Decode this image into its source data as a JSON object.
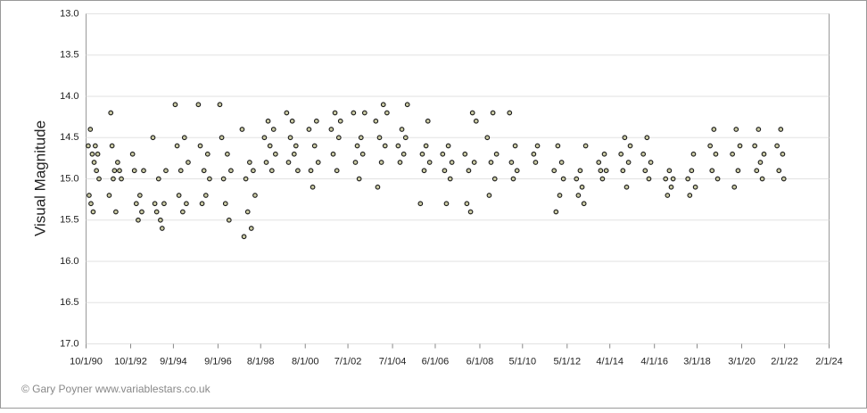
{
  "chart_data": {
    "type": "scatter",
    "y_label": "Visual Magnitude",
    "footer": "© Gary Poyner www.variablestars.co.uk",
    "x": [
      "11/5/90",
      "11/20/90",
      "12/10/90",
      "12/20/90",
      "1/10/91",
      "1/25/91",
      "2/10/91",
      "3/1/91",
      "3/20/91",
      "4/10/91",
      "5/1/91",
      "10/15/91",
      "11/10/91",
      "12/1/91",
      "12/20/91",
      "1/10/92",
      "2/1/92",
      "3/1/92",
      "4/1/92",
      "5/1/92",
      "11/1/92",
      "12/1/92",
      "1/1/93",
      "2/1/93",
      "3/1/93",
      "4/1/93",
      "5/1/93",
      "10/1/93",
      "11/1/93",
      "12/1/93",
      "1/1/94",
      "2/1/94",
      "3/1/94",
      "4/1/94",
      "5/1/94",
      "10/1/94",
      "11/1/94",
      "12/1/94",
      "1/1/95",
      "2/1/95",
      "3/1/95",
      "4/1/95",
      "5/1/95",
      "10/15/95",
      "11/15/95",
      "12/15/95",
      "1/15/96",
      "2/15/96",
      "3/15/96",
      "4/15/96",
      "10/1/96",
      "11/1/96",
      "12/1/96",
      "1/1/97",
      "2/1/97",
      "3/1/97",
      "4/1/97",
      "10/1/97",
      "11/1/97",
      "12/1/97",
      "1/1/98",
      "2/1/98",
      "3/1/98",
      "4/1/98",
      "5/1/98",
      "10/1/98",
      "11/1/98",
      "12/1/98",
      "1/1/99",
      "2/1/99",
      "3/1/99",
      "4/1/99",
      "10/1/99",
      "11/1/99",
      "12/1/99",
      "1/1/00",
      "2/1/00",
      "3/1/00",
      "4/1/00",
      "10/1/00",
      "11/1/00",
      "12/1/00",
      "1/1/01",
      "2/1/01",
      "3/1/01",
      "10/1/01",
      "11/1/01",
      "12/1/01",
      "1/1/02",
      "2/1/02",
      "3/1/02",
      "10/1/02",
      "11/1/02",
      "12/1/02",
      "1/1/03",
      "2/1/03",
      "3/1/03",
      "4/1/03",
      "10/1/03",
      "11/1/03",
      "12/1/03",
      "1/1/04",
      "2/1/04",
      "3/1/04",
      "4/1/04",
      "10/1/04",
      "11/1/04",
      "12/1/04",
      "1/1/05",
      "2/1/05",
      "3/1/05",
      "10/1/05",
      "11/1/05",
      "12/1/05",
      "1/1/06",
      "2/1/06",
      "3/1/06",
      "10/1/06",
      "11/1/06",
      "12/1/06",
      "1/1/07",
      "2/1/07",
      "3/1/07",
      "10/1/07",
      "11/1/07",
      "12/1/07",
      "1/1/08",
      "2/1/08",
      "3/1/08",
      "4/1/08",
      "10/1/08",
      "11/1/08",
      "12/1/08",
      "1/1/09",
      "2/1/09",
      "3/1/09",
      "10/1/09",
      "11/1/09",
      "12/1/09",
      "1/1/10",
      "2/1/10",
      "11/1/10",
      "12/1/10",
      "1/1/11",
      "10/1/11",
      "11/1/11",
      "12/1/11",
      "1/1/12",
      "2/1/12",
      "3/1/12",
      "10/1/12",
      "11/1/12",
      "12/1/12",
      "1/1/13",
      "2/1/13",
      "3/1/13",
      "10/1/13",
      "11/1/13",
      "12/1/13",
      "1/1/14",
      "2/1/14",
      "10/1/14",
      "11/1/14",
      "12/1/14",
      "1/1/15",
      "2/1/15",
      "3/1/15",
      "10/1/15",
      "11/1/15",
      "12/1/15",
      "1/1/16",
      "2/1/16",
      "10/1/16",
      "11/1/16",
      "12/1/16",
      "1/1/17",
      "2/1/17",
      "10/1/17",
      "11/1/17",
      "12/1/17",
      "1/1/18",
      "2/1/18",
      "10/1/18",
      "11/1/18",
      "12/1/18",
      "1/1/19",
      "2/1/19",
      "10/1/19",
      "11/1/19",
      "12/1/19",
      "1/1/20",
      "2/1/20",
      "10/1/20",
      "11/1/20",
      "12/1/20",
      "1/1/21",
      "2/1/21",
      "3/1/21",
      "10/1/21",
      "11/1/21",
      "12/1/21",
      "1/1/22",
      "1/20/22"
    ],
    "values": [
      14.6,
      15.2,
      14.4,
      15.3,
      14.7,
      15.4,
      14.8,
      14.6,
      14.9,
      14.7,
      15.0,
      15.2,
      14.2,
      14.6,
      15.0,
      14.9,
      15.4,
      14.8,
      14.9,
      15.0,
      14.7,
      14.9,
      15.3,
      15.5,
      15.2,
      15.4,
      14.9,
      14.5,
      15.3,
      15.4,
      15.0,
      15.5,
      15.6,
      15.3,
      14.9,
      14.1,
      14.6,
      15.2,
      14.9,
      15.4,
      14.5,
      15.3,
      14.8,
      14.1,
      14.6,
      15.3,
      14.9,
      15.2,
      14.7,
      15.0,
      14.1,
      14.5,
      15.0,
      15.3,
      14.7,
      15.5,
      14.9,
      14.4,
      15.7,
      15.0,
      15.4,
      14.8,
      15.6,
      14.9,
      15.2,
      14.5,
      14.8,
      14.3,
      14.6,
      14.9,
      14.4,
      14.7,
      14.2,
      14.8,
      14.5,
      14.3,
      14.7,
      14.6,
      14.9,
      14.4,
      14.9,
      15.1,
      14.6,
      14.3,
      14.8,
      14.4,
      14.7,
      14.2,
      14.9,
      14.5,
      14.3,
      14.2,
      14.8,
      14.6,
      15.0,
      14.5,
      14.7,
      14.2,
      14.3,
      15.1,
      14.5,
      14.8,
      14.1,
      14.6,
      14.2,
      14.6,
      14.8,
      14.4,
      14.7,
      14.5,
      14.1,
      15.3,
      14.7,
      14.9,
      14.6,
      14.3,
      14.8,
      14.7,
      14.9,
      15.3,
      14.6,
      15.0,
      14.8,
      14.7,
      15.3,
      14.9,
      15.4,
      14.2,
      14.8,
      14.3,
      14.5,
      15.2,
      14.8,
      14.2,
      15.0,
      14.7,
      14.2,
      14.8,
      15.0,
      14.6,
      14.9,
      14.7,
      14.8,
      14.6,
      14.9,
      15.4,
      14.6,
      15.2,
      14.8,
      15.0,
      15.0,
      15.2,
      14.9,
      15.1,
      15.3,
      14.6,
      14.8,
      14.9,
      15.0,
      14.7,
      14.9,
      14.7,
      14.9,
      14.5,
      15.1,
      14.8,
      14.6,
      14.7,
      14.9,
      14.5,
      15.0,
      14.8,
      15.0,
      15.2,
      14.9,
      15.1,
      15.0,
      15.0,
      15.2,
      14.9,
      14.7,
      15.1,
      14.6,
      14.9,
      14.4,
      14.7,
      15.0,
      14.7,
      15.1,
      14.4,
      14.9,
      14.6,
      14.6,
      14.9,
      14.4,
      14.8,
      15.0,
      14.7,
      14.6,
      14.9,
      14.4,
      14.7,
      15.0
    ],
    "marker_color": "#c9c9a3",
    "marker_edge": "#1a1a1a",
    "xlim": [
      "10/1/90",
      "2/1/24"
    ],
    "xticks": [
      "10/1/90",
      "10/1/92",
      "9/1/94",
      "9/1/96",
      "8/1/98",
      "8/1/00",
      "7/1/02",
      "7/1/04",
      "6/1/06",
      "6/1/08",
      "5/1/10",
      "5/1/12",
      "4/1/14",
      "4/1/16",
      "3/1/18",
      "3/1/20",
      "2/1/22",
      "2/1/24"
    ],
    "ylim": [
      13,
      17
    ],
    "y_reversed": true,
    "yticks": [
      {
        "value": 13,
        "label": "13.0"
      },
      {
        "value": 13.5,
        "label": "13.5"
      },
      {
        "value": 14,
        "label": "14.0"
      },
      {
        "value": 14.5,
        "label": "14.5"
      },
      {
        "value": 15,
        "label": "15.0"
      },
      {
        "value": 15.5,
        "label": "15.5"
      },
      {
        "value": 16,
        "label": "16.0"
      },
      {
        "value": 16.5,
        "label": "16.5"
      },
      {
        "value": 17,
        "label": "17.0"
      }
    ],
    "grid": true
  }
}
